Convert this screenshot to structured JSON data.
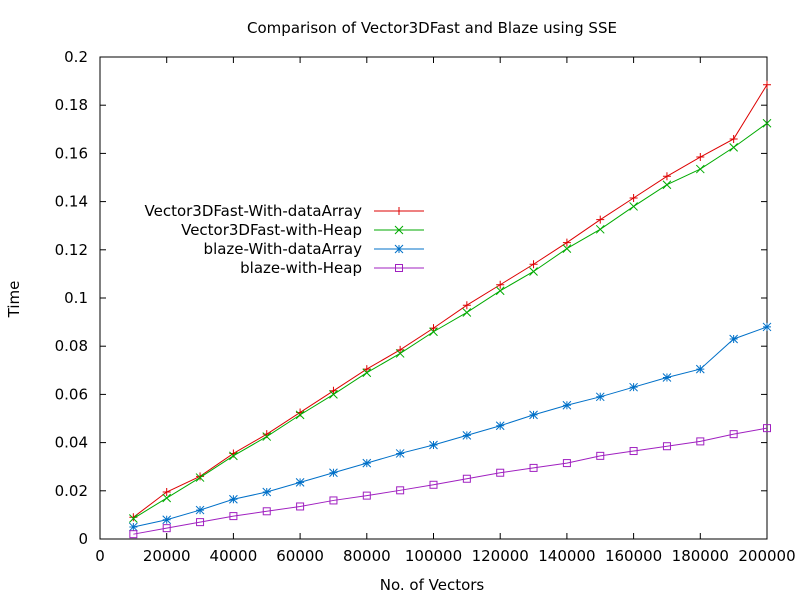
{
  "chart_data": {
    "type": "line",
    "title": "Comparison of Vector3DFast and Blaze using SSE",
    "xlabel": "No. of Vectors",
    "ylabel": "Time",
    "xlim": [
      0,
      200000
    ],
    "ylim": [
      0,
      0.2
    ],
    "x_ticks": [
      0,
      20000,
      40000,
      60000,
      80000,
      100000,
      120000,
      140000,
      160000,
      180000,
      200000
    ],
    "y_ticks": [
      0,
      0.02,
      0.04,
      0.06,
      0.08,
      0.1,
      0.12,
      0.14,
      0.16,
      0.18,
      0.2
    ],
    "x_tick_labels": [
      "0",
      "20000",
      "40000",
      "60000",
      "80000",
      "100000",
      "120000",
      "140000",
      "160000",
      "180000",
      "200000"
    ],
    "y_tick_labels": [
      "0",
      "0.02",
      "0.04",
      "0.06",
      "0.08",
      "0.1",
      "0.12",
      "0.14",
      "0.16",
      "0.18",
      "0.2"
    ],
    "grid": false,
    "legend_position": "middle-left",
    "x": [
      10000,
      20000,
      30000,
      40000,
      50000,
      60000,
      70000,
      80000,
      90000,
      100000,
      110000,
      120000,
      130000,
      140000,
      150000,
      160000,
      170000,
      180000,
      190000,
      200000
    ],
    "series": [
      {
        "name": "Vector3DFast-With-dataArray",
        "color": "#dd0000",
        "marker": "plus",
        "values": [
          0.009,
          0.0195,
          0.026,
          0.0355,
          0.0435,
          0.0525,
          0.0615,
          0.0705,
          0.0785,
          0.0875,
          0.097,
          0.1055,
          0.114,
          0.123,
          0.1325,
          0.1415,
          0.1505,
          0.1585,
          0.166,
          0.1885
        ]
      },
      {
        "name": "Vector3DFast-with-Heap",
        "color": "#00aa00",
        "marker": "cross",
        "values": [
          0.0085,
          0.017,
          0.0255,
          0.0345,
          0.0425,
          0.0515,
          0.06,
          0.069,
          0.077,
          0.086,
          0.094,
          0.103,
          0.111,
          0.1205,
          0.1285,
          0.138,
          0.147,
          0.1535,
          0.1625,
          0.1725
        ]
      },
      {
        "name": "blaze-With-dataArray",
        "color": "#0070c8",
        "marker": "star",
        "values": [
          0.005,
          0.008,
          0.012,
          0.0165,
          0.0195,
          0.0235,
          0.0275,
          0.0315,
          0.0355,
          0.039,
          0.043,
          0.047,
          0.0515,
          0.0555,
          0.059,
          0.063,
          0.067,
          0.0705,
          0.083,
          0.088
        ]
      },
      {
        "name": "blaze-with-Heap",
        "color": "#a020c0",
        "marker": "square",
        "values": [
          0.002,
          0.0045,
          0.007,
          0.0095,
          0.0115,
          0.0135,
          0.016,
          0.018,
          0.0202,
          0.0225,
          0.025,
          0.0275,
          0.0295,
          0.0315,
          0.0345,
          0.0365,
          0.0385,
          0.0405,
          0.0435,
          0.046
        ]
      }
    ]
  }
}
